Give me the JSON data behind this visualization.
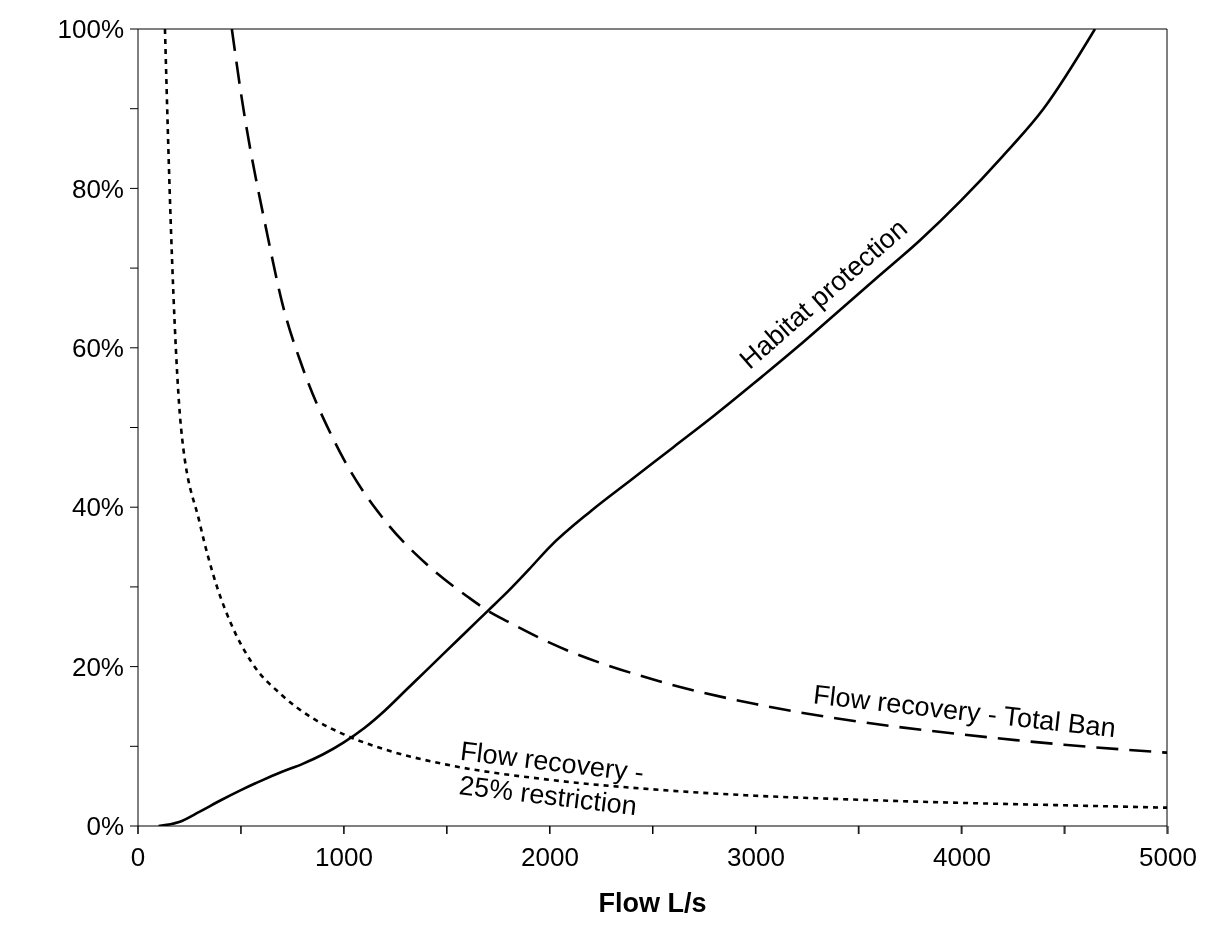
{
  "chart_data": {
    "type": "line",
    "xlabel": "Flow L/s",
    "xlim": [
      0,
      5000
    ],
    "xticks": [
      0,
      {
        "value": 500,
        "label": null
      },
      1000,
      {
        "value": 1500,
        "label": null
      },
      2000,
      {
        "value": 2500,
        "label": null
      },
      3000,
      {
        "value": 3500,
        "label": null
      },
      4000,
      {
        "value": 4500,
        "label": null
      },
      5000
    ],
    "ylim": [
      0,
      100
    ],
    "yticks": [
      {
        "value": 0,
        "label": "0%"
      },
      {
        "value": 10,
        "label": null
      },
      {
        "value": 20,
        "label": "20%"
      },
      {
        "value": 30,
        "label": null
      },
      {
        "value": 40,
        "label": "40%"
      },
      {
        "value": 50,
        "label": null
      },
      {
        "value": 60,
        "label": "60%"
      },
      {
        "value": 70,
        "label": null
      },
      {
        "value": 80,
        "label": "80%"
      },
      {
        "value": 90,
        "label": null
      },
      {
        "value": 100,
        "label": "100%"
      }
    ],
    "marker": "none",
    "series": [
      {
        "name": "Habitat protection",
        "color": "#000000",
        "line_style": "solid",
        "x": [
          100,
          200,
          300,
          400,
          500,
          600,
          700,
          800,
          900,
          1000,
          1100,
          1200,
          1300,
          1400,
          1500,
          1600,
          1700,
          1800,
          1900,
          2000,
          2200,
          2400,
          2600,
          2800,
          3000,
          3200,
          3400,
          3600,
          3800,
          4000,
          4200,
          4400,
          4650
        ],
        "values": [
          0,
          0.5,
          1.8,
          3.2,
          4.5,
          5.7,
          6.8,
          7.8,
          9,
          10.5,
          12.3,
          14.5,
          17,
          19.5,
          22,
          24.5,
          27,
          29.5,
          32.2,
          35,
          39.5,
          43.5,
          47.5,
          51.5,
          55.7,
          60,
          64.5,
          69,
          73.5,
          78.5,
          84,
          90,
          100
        ]
      },
      {
        "name": "Flow recovery - Total Ban",
        "color": "#000000",
        "line_style": "dashed",
        "x": [
          456,
          500,
          630,
          700,
          800,
          950,
          1000,
          1200,
          1400,
          1600,
          1700,
          1800,
          2000,
          2500,
          3000,
          3500,
          4000,
          4500,
          5000
        ],
        "values": [
          100,
          92,
          74,
          65.7,
          57.5,
          48.5,
          46,
          38.3,
          32.9,
          28.8,
          27,
          25.6,
          23,
          18.4,
          15.3,
          13.1,
          11.5,
          10.2,
          9.2
        ]
      },
      {
        "name": "Flow recovery - 25% restriction",
        "color": "#000000",
        "line_style": "dotted",
        "x": [
          131,
          160,
          209,
          300,
          384,
          450,
          553,
          700,
          850,
          1000,
          1200,
          1500,
          2000,
          2500,
          3000,
          3500,
          4000,
          4500,
          5000
        ],
        "values": [
          100,
          75,
          50,
          38,
          30,
          25.5,
          20.5,
          16.4,
          13.5,
          11.5,
          9.6,
          7.7,
          5.8,
          4.6,
          3.8,
          3.3,
          2.9,
          2.6,
          2.3
        ]
      }
    ]
  }
}
